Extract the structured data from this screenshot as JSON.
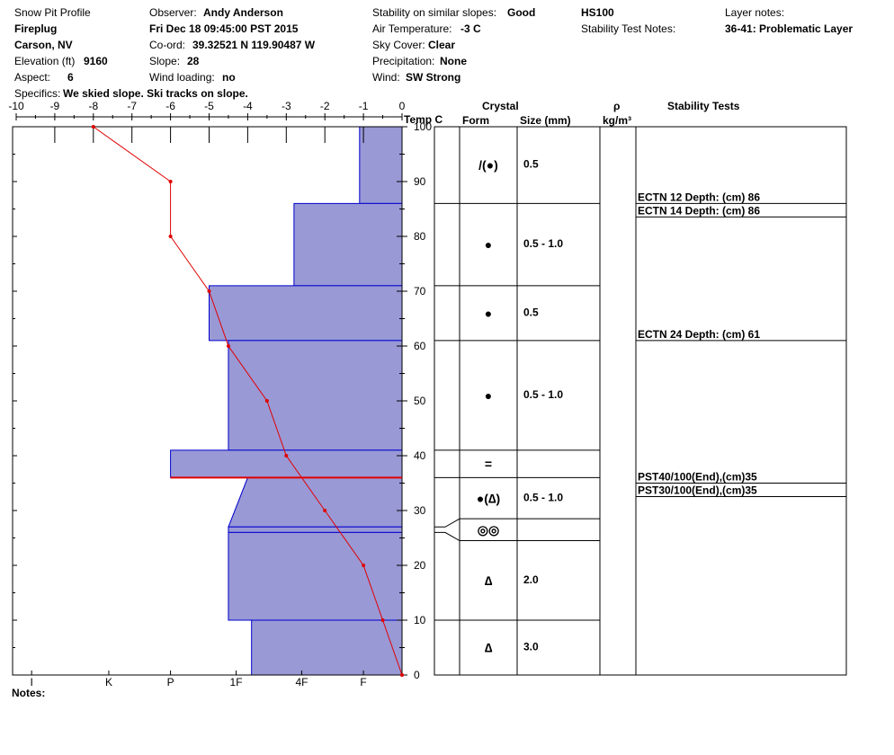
{
  "header": {
    "title": "Snow Pit Profile",
    "site": "Fireplug",
    "location": "Carson, NV",
    "elevation_label": "Elevation (ft)",
    "elevation": "9160",
    "aspect_label": "Aspect:",
    "aspect": "6",
    "specifics_label": "Specifics:",
    "specifics": "We skied slope. Ski tracks on slope.",
    "observer_label": "Observer:",
    "observer": "Andy Anderson",
    "datetime": "Fri Dec 18 09:45:00 PST 2015",
    "coord_label": "Co-ord:",
    "coord": "39.32521 N 119.90487 W",
    "slope_label": "Slope:",
    "slope": "28",
    "wind_loading_label": "Wind loading:",
    "wind_loading": "no",
    "stability_label": "Stability on similar slopes:",
    "stability": "Good",
    "air_temp_label": "Air Temperature:",
    "air_temp": "-3 C",
    "sky_label": "Sky Cover:",
    "sky": "Clear",
    "precip_label": "Precipitation:",
    "precip": "None",
    "wind_label": "Wind:",
    "wind": "SW Strong",
    "hs": "HS100",
    "stn_label": "Stability Test Notes:",
    "layer_notes_label": "Layer notes:",
    "layer_note": "36-41: Problematic Layer"
  },
  "table_headers": {
    "crystal": "Crystal",
    "form": "Form",
    "size": "Size (mm)",
    "rho": "ρ",
    "rho_unit": "kg/m³",
    "stability_tests": "Stability Tests",
    "temp": "Temp C"
  },
  "notes_label": "Notes:",
  "colors": {
    "hardness_fill": "#9999d6",
    "hardness_stroke": "#0000cc",
    "temperature": "#e00000",
    "weak_layer": "#e00000"
  },
  "chart_data": {
    "type": "line",
    "temp_axis": {
      "range": [
        -10,
        0
      ],
      "ticks": [
        -10,
        -9,
        -8,
        -7,
        -6,
        -5,
        -4,
        -3,
        -2,
        -1,
        0
      ],
      "tick_labels": [
        "-10",
        "-9",
        "-8",
        "-7",
        "-6",
        "-5",
        "-4",
        "-3",
        "-2",
        "-1",
        "0"
      ],
      "label": "Temp C"
    },
    "depth_axis": {
      "range": [
        0,
        100
      ],
      "ticks": [
        0,
        10,
        20,
        30,
        40,
        50,
        60,
        70,
        80,
        90,
        100
      ],
      "tick_labels": [
        "0",
        "10",
        "20",
        "30",
        "40",
        "50",
        "60",
        "70",
        "80",
        "90",
        "100"
      ]
    },
    "hardness_axis": {
      "labels": [
        "I",
        "K",
        "P",
        "1F",
        "4F",
        "F"
      ],
      "values": [
        -9.6,
        -7.6,
        -6,
        -4.3,
        -2.6,
        -1
      ]
    },
    "temperature_profile": [
      {
        "depth": 100,
        "temp": -8
      },
      {
        "depth": 90,
        "temp": -6
      },
      {
        "depth": 80,
        "temp": -6
      },
      {
        "depth": 70,
        "temp": -5
      },
      {
        "depth": 60,
        "temp": -4.5
      },
      {
        "depth": 50,
        "temp": -3.5
      },
      {
        "depth": 40,
        "temp": -3
      },
      {
        "depth": 30,
        "temp": -2
      },
      {
        "depth": 20,
        "temp": -1
      },
      {
        "depth": 10,
        "temp": -0.5
      },
      {
        "depth": 0,
        "temp": 0
      }
    ],
    "hardness_profile": [
      {
        "top": 100,
        "bottom": 86,
        "hardness_top": -1.1,
        "hardness_bottom": -1.1
      },
      {
        "top": 86,
        "bottom": 71,
        "hardness_top": -2.8,
        "hardness_bottom": -2.8
      },
      {
        "top": 71,
        "bottom": 61,
        "hardness_top": -5,
        "hardness_bottom": -5
      },
      {
        "top": 61,
        "bottom": 41,
        "hardness_top": -4.5,
        "hardness_bottom": -4.5
      },
      {
        "top": 41,
        "bottom": 36,
        "hardness_top": -6,
        "hardness_bottom": -6
      },
      {
        "top": 36,
        "bottom": 27,
        "hardness_top": -4,
        "hardness_bottom": -4.5
      },
      {
        "top": 27,
        "bottom": 26,
        "hardness_top": -4.5,
        "hardness_bottom": -4.5
      },
      {
        "top": 26,
        "bottom": 10,
        "hardness_top": -4.5,
        "hardness_bottom": -4.5
      },
      {
        "top": 10,
        "bottom": 0,
        "hardness_top": -3.9,
        "hardness_bottom": -3.9
      }
    ],
    "weak_layer_depth": 36,
    "layers": [
      {
        "top": 100,
        "bottom": 86,
        "form": "/(●)",
        "size": "0.5"
      },
      {
        "top": 86,
        "bottom": 71,
        "form": "●",
        "size": "0.5 - 1.0"
      },
      {
        "top": 71,
        "bottom": 61,
        "form": "●",
        "size": "0.5"
      },
      {
        "top": 61,
        "bottom": 41,
        "form": "●",
        "size": "0.5 - 1.0"
      },
      {
        "top": 41,
        "bottom": 36,
        "form": "=",
        "size": ""
      },
      {
        "top": 36,
        "bottom": 28.5,
        "form": "●(∆)",
        "size": "0.5 - 1.0"
      },
      {
        "top": 28.5,
        "bottom": 24.5,
        "form": "◎◎",
        "size": ""
      },
      {
        "top": 24.5,
        "bottom": 10,
        "form": "∆",
        "size": "2.0"
      },
      {
        "top": 10,
        "bottom": 0,
        "form": "∆",
        "size": "3.0"
      }
    ],
    "stability_tests": [
      {
        "text": "ECTN 12   Depth: (cm) 86",
        "depth": 86
      },
      {
        "text": "ECTN 14   Depth: (cm) 86",
        "depth": 86
      },
      {
        "text": "ECTN 24   Depth: (cm) 61",
        "depth": 61
      },
      {
        "text": "PST40/100(End),(cm)35",
        "depth": 35
      },
      {
        "text": "PST30/100(End),(cm)35",
        "depth": 35
      }
    ]
  }
}
